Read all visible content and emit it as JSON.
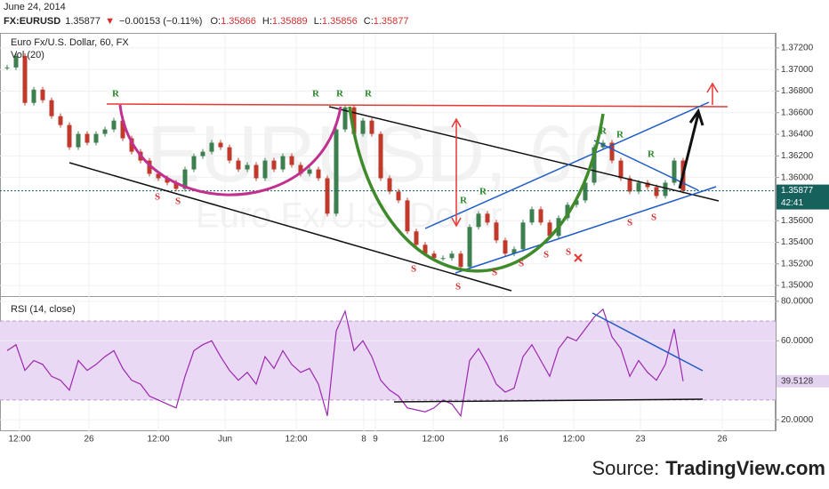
{
  "header": {
    "date": "June 24, 2014",
    "symbol": "FX:EURUSD",
    "last": 1.35877,
    "direction": "▼",
    "change": "−0.00153 (−0.11%)",
    "ohlc": [
      {
        "label": "O:",
        "value": 1.35866
      },
      {
        "label": "H:",
        "value": 1.35889
      },
      {
        "label": "L:",
        "value": 1.35856
      },
      {
        "label": "C:",
        "value": 1.35877
      }
    ]
  },
  "source": {
    "prefix": "Source:",
    "site": "TradingView.com"
  },
  "chart_data": [
    {
      "type": "candlestick",
      "title": "Euro Fx/U.S. Dollar, 60, FX",
      "indicator": "Vol (20)",
      "watermark": "EURUSD, 60",
      "watermark_subtitle": "Euro Fx/U.S. Dollar",
      "countdown": "42:41",
      "up_color": "#3d7f4f",
      "down_color": "#c0392b",
      "last_color": "#17615d",
      "resistance_marks": [
        "R",
        "R",
        "R",
        "R",
        "R",
        "R",
        "R",
        "R",
        "R"
      ],
      "resistance_color": "#2e8b2e",
      "support_marks": [
        "S",
        "S",
        "S",
        "S",
        "S",
        "S",
        "S",
        "S",
        "S",
        "S"
      ],
      "support_color": "#d32f2f",
      "x": [
        0,
        1,
        2,
        3,
        4,
        5,
        6,
        7,
        8,
        9,
        10,
        11,
        12,
        13,
        14,
        15,
        16,
        17,
        18,
        19,
        20,
        21,
        22,
        23,
        24,
        25,
        26,
        27,
        28,
        29,
        30,
        31,
        32,
        33,
        34,
        35,
        36,
        37,
        38,
        39,
        40,
        41,
        42,
        43,
        44,
        45,
        46,
        47,
        48,
        49,
        50,
        51,
        52,
        53,
        54,
        55,
        56,
        57,
        58,
        59,
        60,
        61,
        62,
        63,
        64,
        65,
        66,
        67,
        68,
        69,
        70,
        71,
        72,
        73,
        74,
        75,
        76
      ],
      "values": [
        1.37019,
        1.37126,
        1.36691,
        1.36814,
        1.36716,
        1.36568,
        1.36486,
        1.3628,
        1.36404,
        1.36322,
        1.36404,
        1.36445,
        1.36527,
        1.36363,
        1.36239,
        1.36157,
        1.36034,
        1.35993,
        1.35952,
        1.35895,
        1.36075,
        1.36198,
        1.36239,
        1.36322,
        1.3628,
        1.36157,
        1.36075,
        1.36116,
        1.35993,
        1.36157,
        1.36075,
        1.36198,
        1.36116,
        1.36034,
        1.36075,
        1.35993,
        1.35665,
        1.36445,
        1.3665,
        1.36404,
        1.36527,
        1.36404,
        1.35993,
        1.3587,
        1.35788,
        1.35501,
        1.35377,
        1.35295,
        1.35254,
        1.35254,
        1.35295,
        1.35172,
        1.35542,
        1.35665,
        1.35583,
        1.35418,
        1.35295,
        1.35336,
        1.35583,
        1.35706,
        1.35583,
        1.35459,
        1.35624,
        1.35747,
        1.35788,
        1.35952,
        1.3628,
        1.36322,
        1.36157,
        1.35993,
        1.3587,
        1.35952,
        1.35911,
        1.35829,
        1.35952,
        1.36157,
        1.35877
      ],
      "xlim": [
        -0.8,
        86.4
      ],
      "ylim": [
        1.34902,
        1.37331
      ],
      "yticks": [
        {
          "value": 1.35,
          "label": "1.35000"
        },
        {
          "value": 1.352,
          "label": "1.35200"
        },
        {
          "value": 1.354,
          "label": "1.35400"
        },
        {
          "value": 1.356,
          "label": "1.35600"
        },
        {
          "value": 1.36,
          "label": "1.36000"
        },
        {
          "value": 1.362,
          "label": "1.36200"
        },
        {
          "value": 1.364,
          "label": "1.36400"
        },
        {
          "value": 1.366,
          "label": "1.36600"
        },
        {
          "value": 1.368,
          "label": "1.36800"
        },
        {
          "value": 1.37,
          "label": "1.37000"
        },
        {
          "value": 1.372,
          "label": "1.37200"
        }
      ],
      "grid": true
    },
    {
      "type": "line",
      "title": "RSI (14, close)",
      "color": "#9c27b0",
      "band": [
        30,
        70
      ],
      "band_color": "#ead9f5",
      "last_color": "#e3d2f0",
      "x": [
        0,
        1,
        2,
        3,
        4,
        5,
        6,
        7,
        8,
        9,
        10,
        11,
        12,
        13,
        14,
        15,
        16,
        17,
        18,
        19,
        20,
        21,
        22,
        23,
        24,
        25,
        26,
        27,
        28,
        29,
        30,
        31,
        32,
        33,
        34,
        35,
        36,
        37,
        38,
        39,
        40,
        41,
        42,
        43,
        44,
        45,
        46,
        47,
        48,
        49,
        50,
        51,
        52,
        53,
        54,
        55,
        56,
        57,
        58,
        59,
        60,
        61,
        62,
        63,
        64,
        65,
        66,
        67,
        68,
        69,
        70,
        71,
        72,
        73,
        74,
        75,
        76
      ],
      "values": [
        55,
        58,
        45,
        50,
        48,
        42,
        40,
        35,
        50,
        45,
        48,
        52,
        55,
        46,
        40,
        38,
        32,
        30,
        28,
        26,
        42,
        55,
        58,
        60,
        52,
        45,
        40,
        44,
        38,
        52,
        46,
        55,
        48,
        44,
        46,
        38,
        22,
        65,
        75,
        55,
        60,
        52,
        40,
        35,
        32,
        26,
        25,
        24,
        26,
        30,
        28,
        22,
        50,
        56,
        48,
        38,
        34,
        36,
        52,
        58,
        50,
        42,
        56,
        62,
        60,
        66,
        72,
        76,
        62,
        56,
        42,
        50,
        44,
        40,
        48,
        66,
        39.5128
      ],
      "xlim": [
        -0.8,
        86.4
      ],
      "ylim": [
        14.2,
        82.2
      ],
      "yticks": [
        {
          "value": 20,
          "label": "20.0000"
        },
        {
          "value": 60,
          "label": "60.0000"
        },
        {
          "value": 80,
          "label": "80.0000"
        }
      ],
      "xticks": [
        {
          "value": 1.4,
          "label": "12:00"
        },
        {
          "value": 9.2,
          "label": "26"
        },
        {
          "value": 17,
          "label": "12:00"
        },
        {
          "value": 24.5,
          "label": "Jun"
        },
        {
          "value": 32.5,
          "label": "12:00"
        },
        {
          "value": 40.1,
          "label": "8"
        },
        {
          "value": 41.4,
          "label": "9"
        },
        {
          "value": 47.9,
          "label": "12:00"
        },
        {
          "value": 55.8,
          "label": "16"
        },
        {
          "value": 63.7,
          "label": "12:00"
        },
        {
          "value": 71.2,
          "label": "23"
        },
        {
          "value": 80.4,
          "label": "26"
        }
      ],
      "grid": true
    }
  ]
}
